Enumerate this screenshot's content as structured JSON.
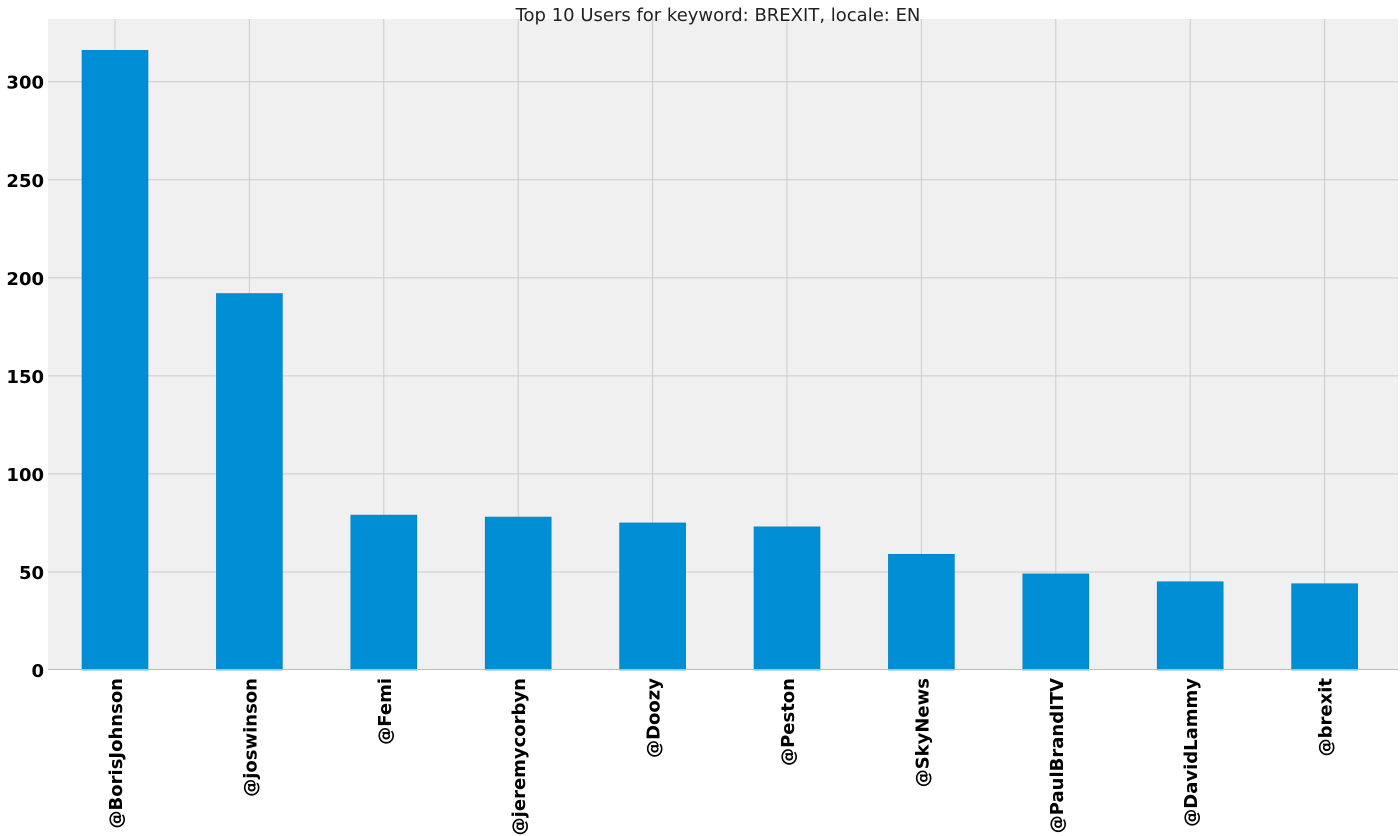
{
  "chart_data": {
    "type": "bar",
    "title": "Top 10 Users for keyword: BREXIT, locale: EN",
    "xlabel": "",
    "ylabel": "",
    "categories": [
      "@BorisJohnson",
      "@joswinson",
      "@Femi",
      "@jeremycorbyn",
      "@Doozy",
      "@Peston",
      "@SkyNews",
      "@PaulBrandITV",
      "@DavidLammy",
      "@brexit"
    ],
    "values": [
      316,
      192,
      79,
      78,
      75,
      73,
      59,
      49,
      45,
      44
    ],
    "ylim": [
      0,
      332
    ],
    "yticks": [
      0,
      50,
      100,
      150,
      200,
      250,
      300
    ],
    "grid": true,
    "legend": "none",
    "colors": {
      "bar": "#008fd5",
      "background": "#f0f0f0",
      "grid": "#cbcbcb"
    }
  }
}
